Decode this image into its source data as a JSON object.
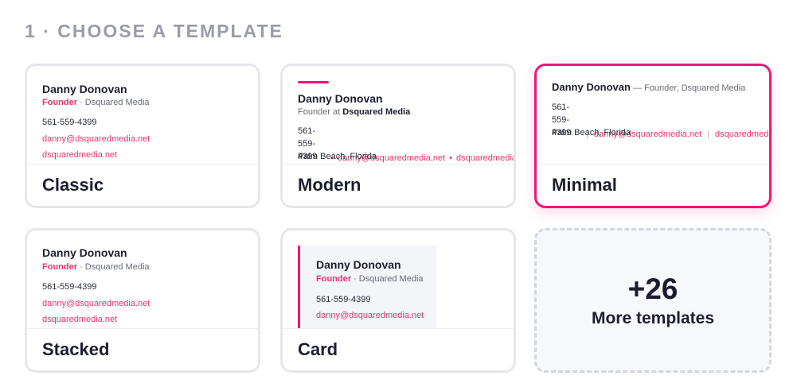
{
  "heading": "1 · CHOOSE A TEMPLATE",
  "templates": [
    {
      "label": "Classic",
      "selected": false,
      "preview": {
        "name": "Danny Donovan",
        "role": "Founder",
        "separator": "·",
        "company": "Dsquared Media",
        "phone": "561-559-4399",
        "email": "danny@dsquaredmedia.net",
        "website": "dsquaredmedia.net"
      }
    },
    {
      "label": "Modern",
      "selected": false,
      "preview": {
        "name": "Danny Donovan",
        "role": "Founder at",
        "company": "Dsquared Media",
        "phone": "561-559-4399",
        "separator": "•",
        "email": "danny@dsquaredmedia.net",
        "separator2": "•",
        "website": "dsquaredmedia.net",
        "location": "Palm Beach, Florida"
      }
    },
    {
      "label": "Minimal",
      "selected": true,
      "preview": {
        "name": "Danny Donovan",
        "role": "— Founder, Dsquared Media",
        "phone": "561-559-4399",
        "separator": "|",
        "email": "danny@dsquaredmedia.net",
        "separator2": "|",
        "website": "dsquaredmedia.net",
        "location": "Palm Beach, Florida"
      }
    },
    {
      "label": "Stacked",
      "selected": false,
      "preview": {
        "name": "Danny Donovan",
        "role": "Founder",
        "separator": "·",
        "company": "Dsquared Media",
        "phone": "561-559-4399",
        "email": "danny@dsquaredmedia.net",
        "website": "dsquaredmedia.net"
      }
    },
    {
      "label": "Card",
      "selected": false,
      "preview": {
        "name": "Danny Donovan",
        "role": "Founder",
        "separator": "·",
        "company": "Dsquared Media",
        "phone": "561-559-4399",
        "email": "danny@dsquaredmedia.net"
      }
    }
  ],
  "more": {
    "count": "+26",
    "label": "More templates"
  }
}
